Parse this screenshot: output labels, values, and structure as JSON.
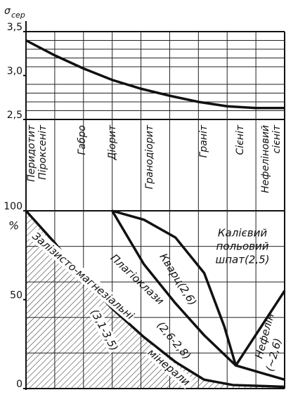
{
  "chart_data": [
    {
      "type": "line",
      "ylabel": "σ",
      "ylabel_sub": "сер",
      "ylim": [
        2.5,
        3.5
      ],
      "yticks": [
        {
          "value": 2.5,
          "label": "2,5"
        },
        {
          "value": 3.0,
          "label": "3,0"
        },
        {
          "value": 3.5,
          "label": "3,5"
        }
      ],
      "minor_yticks": [
        2.6,
        2.7,
        2.8,
        2.9,
        3.1,
        3.2,
        3.3,
        3.4
      ],
      "xlim": [
        0,
        9
      ],
      "color": "#111111",
      "series": [
        {
          "x": [
            0,
            1,
            2,
            3,
            4,
            5,
            6,
            7,
            8,
            9
          ],
          "values": [
            3.4,
            3.23,
            3.08,
            2.95,
            2.85,
            2.77,
            2.7,
            2.65,
            2.63,
            2.63
          ]
        }
      ]
    },
    {
      "type": "line",
      "ylabel": "%",
      "ylim": [
        0,
        100
      ],
      "yticks": [
        0,
        50,
        100
      ],
      "minor_yticks": [
        20,
        40,
        60,
        80
      ],
      "xlim": [
        0,
        9
      ],
      "color": "#111111",
      "series": [
        {
          "x": [
            0,
            1,
            2,
            3,
            4.1,
            5.2,
            6.2,
            7.2,
            9
          ],
          "values": [
            100,
            82,
            62,
            45,
            29,
            15,
            5,
            2,
            1
          ],
          "fill": "hatch"
        },
        {
          "x": [
            3,
            4.1,
            5.2,
            6.2,
            7.3,
            9
          ],
          "values": [
            100,
            70,
            48,
            30,
            13,
            5
          ]
        },
        {
          "x": [
            3,
            4.1,
            5.2,
            6.2,
            6.9,
            7.3
          ],
          "values": [
            100,
            95,
            85,
            65,
            35,
            13
          ]
        },
        {
          "x": [
            7.3,
            9
          ],
          "values": [
            13,
            55
          ]
        }
      ],
      "annotations": [
        [
          "Калієвий",
          "польовий",
          "шпат(2,5)"
        ],
        [
          "Кварц(2,6)"
        ],
        [
          "Плагіоклази",
          "(2,6-2,8)"
        ],
        [
          "Залізисто-магнезіальні",
          "(3,1-3,5)",
          "мінерали"
        ],
        [
          "Нефелін",
          "(~2,6)"
        ]
      ]
    }
  ],
  "rock_types": [
    [
      "Перидотит",
      "Піроксеніт"
    ],
    [
      "Габро"
    ],
    [
      "Діорит"
    ],
    [
      "Гранодіорит"
    ],
    [
      "Граніт"
    ],
    [
      "Сієніт"
    ],
    [
      "Нефеліновий",
      "сієніт"
    ]
  ]
}
